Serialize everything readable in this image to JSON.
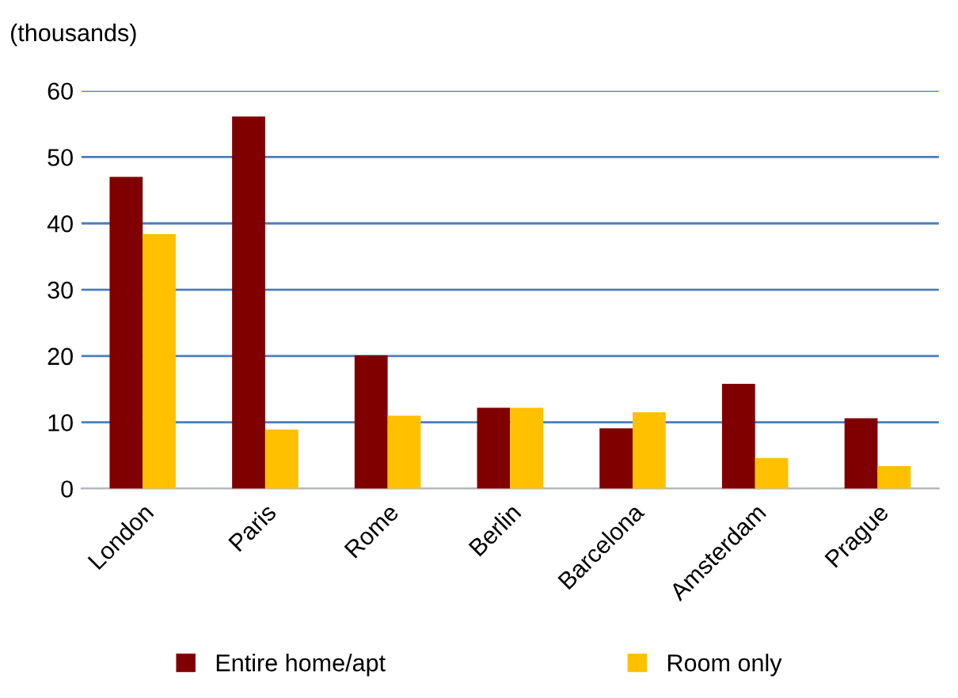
{
  "chart_data": {
    "type": "bar",
    "ylabel": "(thousands)",
    "categories": [
      "London",
      "Paris",
      "Rome",
      "Berlin",
      "Barcelona",
      "Amsterdam",
      "Prague"
    ],
    "series": [
      {
        "name": "Entire home/apt",
        "color": "#800000",
        "values": [
          47,
          56.1,
          20.1,
          12.2,
          9.1,
          15.8,
          10.6
        ]
      },
      {
        "name": "Room only",
        "color": "#ffc000",
        "values": [
          38.4,
          8.9,
          11,
          12.2,
          11.5,
          4.6,
          3.4
        ]
      }
    ],
    "ylim": [
      0,
      60
    ],
    "yticks": [
      0,
      10,
      20,
      30,
      40,
      50,
      60
    ],
    "grid": "y",
    "legend": "bottom"
  }
}
